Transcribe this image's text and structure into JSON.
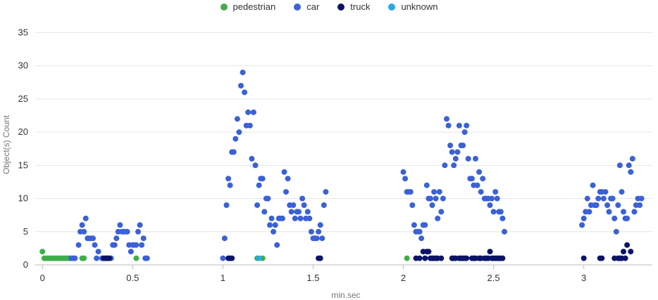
{
  "chart_data": {
    "type": "scatter",
    "title": "",
    "xlabel": "min.sec",
    "ylabel": "Object(s) Count",
    "xlim": [
      -0.04,
      3.38
    ],
    "ylim": [
      0,
      36
    ],
    "x_ticks": [
      0,
      0.5,
      1,
      1.5,
      2,
      2.5,
      3
    ],
    "x_tick_labels": [
      "0",
      "0.5",
      "1",
      "1.5",
      "2",
      "2.5",
      "3"
    ],
    "y_ticks": [
      0,
      5,
      10,
      15,
      20,
      25,
      30,
      35
    ],
    "y_tick_labels": [
      "0",
      "5",
      "10",
      "15",
      "20",
      "25",
      "30",
      "35"
    ],
    "grid": true,
    "legend_position": "top-center",
    "series": [
      {
        "name": "pedestrian",
        "color": "#3fae4a",
        "points": [
          [
            0.0,
            2
          ],
          [
            0.01,
            1
          ],
          [
            0.02,
            1
          ],
          [
            0.03,
            1
          ],
          [
            0.04,
            1
          ],
          [
            0.05,
            1
          ],
          [
            0.06,
            1
          ],
          [
            0.07,
            1
          ],
          [
            0.08,
            1
          ],
          [
            0.09,
            1
          ],
          [
            0.1,
            1
          ],
          [
            0.11,
            1
          ],
          [
            0.12,
            1
          ],
          [
            0.13,
            1
          ],
          [
            0.14,
            1
          ],
          [
            0.15,
            1
          ],
          [
            0.22,
            1
          ],
          [
            0.23,
            1
          ],
          [
            0.52,
            1
          ],
          [
            1.19,
            1
          ],
          [
            1.22,
            1
          ],
          [
            2.02,
            1
          ]
        ]
      },
      {
        "name": "car",
        "color": "#3b61d6",
        "points": [
          [
            0.16,
            1
          ],
          [
            0.17,
            1
          ],
          [
            0.18,
            1
          ],
          [
            0.2,
            3
          ],
          [
            0.21,
            5
          ],
          [
            0.22,
            6
          ],
          [
            0.23,
            5
          ],
          [
            0.24,
            7
          ],
          [
            0.25,
            4
          ],
          [
            0.26,
            4
          ],
          [
            0.27,
            4
          ],
          [
            0.28,
            4
          ],
          [
            0.29,
            3
          ],
          [
            0.3,
            1
          ],
          [
            0.31,
            2
          ],
          [
            0.33,
            1
          ],
          [
            0.36,
            1
          ],
          [
            0.38,
            1
          ],
          [
            0.39,
            3
          ],
          [
            0.4,
            3
          ],
          [
            0.41,
            4
          ],
          [
            0.42,
            5
          ],
          [
            0.43,
            6
          ],
          [
            0.44,
            5
          ],
          [
            0.45,
            5
          ],
          [
            0.46,
            5
          ],
          [
            0.47,
            5
          ],
          [
            0.48,
            3
          ],
          [
            0.49,
            2
          ],
          [
            0.5,
            3
          ],
          [
            0.51,
            3
          ],
          [
            0.52,
            3
          ],
          [
            0.53,
            5
          ],
          [
            0.54,
            6
          ],
          [
            0.55,
            3
          ],
          [
            0.56,
            4
          ],
          [
            0.57,
            1
          ],
          [
            0.58,
            1
          ],
          [
            1.0,
            1
          ],
          [
            1.01,
            4
          ],
          [
            1.02,
            9
          ],
          [
            1.03,
            13
          ],
          [
            1.04,
            12
          ],
          [
            1.05,
            17
          ],
          [
            1.06,
            17
          ],
          [
            1.07,
            19
          ],
          [
            1.08,
            22
          ],
          [
            1.09,
            20
          ],
          [
            1.1,
            27
          ],
          [
            1.11,
            29
          ],
          [
            1.12,
            26
          ],
          [
            1.13,
            21
          ],
          [
            1.14,
            23
          ],
          [
            1.15,
            21
          ],
          [
            1.16,
            16
          ],
          [
            1.17,
            23
          ],
          [
            1.18,
            15
          ],
          [
            1.19,
            9
          ],
          [
            1.2,
            12
          ],
          [
            1.21,
            13
          ],
          [
            1.22,
            13
          ],
          [
            1.23,
            8
          ],
          [
            1.24,
            10
          ],
          [
            1.25,
            10
          ],
          [
            1.26,
            6
          ],
          [
            1.27,
            7
          ],
          [
            1.28,
            5
          ],
          [
            1.29,
            6
          ],
          [
            1.3,
            3
          ],
          [
            1.31,
            7
          ],
          [
            1.32,
            7
          ],
          [
            1.33,
            7
          ],
          [
            1.34,
            14
          ],
          [
            1.35,
            11
          ],
          [
            1.36,
            13
          ],
          [
            1.37,
            9
          ],
          [
            1.38,
            8
          ],
          [
            1.39,
            9
          ],
          [
            1.4,
            7
          ],
          [
            1.41,
            8
          ],
          [
            1.42,
            8
          ],
          [
            1.43,
            7
          ],
          [
            1.44,
            10
          ],
          [
            1.45,
            9
          ],
          [
            1.46,
            7
          ],
          [
            1.47,
            8
          ],
          [
            1.48,
            7
          ],
          [
            1.49,
            5
          ],
          [
            1.5,
            4
          ],
          [
            1.51,
            4
          ],
          [
            1.52,
            4
          ],
          [
            1.53,
            5
          ],
          [
            1.54,
            6
          ],
          [
            1.55,
            4
          ],
          [
            1.56,
            9
          ],
          [
            1.57,
            11
          ],
          [
            2.0,
            14
          ],
          [
            2.01,
            13
          ],
          [
            2.02,
            11
          ],
          [
            2.03,
            11
          ],
          [
            2.04,
            11
          ],
          [
            2.05,
            9
          ],
          [
            2.06,
            6
          ],
          [
            2.07,
            5
          ],
          [
            2.08,
            5
          ],
          [
            2.09,
            5
          ],
          [
            2.1,
            4
          ],
          [
            2.11,
            6
          ],
          [
            2.12,
            6
          ],
          [
            2.13,
            12
          ],
          [
            2.14,
            10
          ],
          [
            2.15,
            10
          ],
          [
            2.16,
            9
          ],
          [
            2.17,
            11
          ],
          [
            2.18,
            10
          ],
          [
            2.19,
            7
          ],
          [
            2.2,
            11
          ],
          [
            2.21,
            8
          ],
          [
            2.22,
            10
          ],
          [
            2.23,
            15
          ],
          [
            2.24,
            22
          ],
          [
            2.25,
            21
          ],
          [
            2.26,
            18
          ],
          [
            2.27,
            17
          ],
          [
            2.28,
            15
          ],
          [
            2.29,
            16
          ],
          [
            2.3,
            17
          ],
          [
            2.31,
            21
          ],
          [
            2.32,
            18
          ],
          [
            2.33,
            18
          ],
          [
            2.34,
            20
          ],
          [
            2.35,
            21
          ],
          [
            2.36,
            16
          ],
          [
            2.37,
            13
          ],
          [
            2.38,
            13
          ],
          [
            2.39,
            12
          ],
          [
            2.4,
            16
          ],
          [
            2.41,
            12
          ],
          [
            2.42,
            14
          ],
          [
            2.43,
            11
          ],
          [
            2.44,
            13
          ],
          [
            2.45,
            10
          ],
          [
            2.46,
            10
          ],
          [
            2.47,
            10
          ],
          [
            2.48,
            9
          ],
          [
            2.49,
            10
          ],
          [
            2.5,
            8
          ],
          [
            2.51,
            11
          ],
          [
            2.52,
            10
          ],
          [
            2.53,
            8
          ],
          [
            2.54,
            8
          ],
          [
            2.55,
            7
          ],
          [
            2.56,
            5
          ],
          [
            2.99,
            6
          ],
          [
            3.0,
            7
          ],
          [
            3.01,
            8
          ],
          [
            3.02,
            10
          ],
          [
            3.03,
            8
          ],
          [
            3.04,
            9
          ],
          [
            3.05,
            12
          ],
          [
            3.06,
            9
          ],
          [
            3.07,
            9
          ],
          [
            3.08,
            10
          ],
          [
            3.09,
            11
          ],
          [
            3.1,
            11
          ],
          [
            3.11,
            10
          ],
          [
            3.12,
            11
          ],
          [
            3.13,
            9
          ],
          [
            3.14,
            8
          ],
          [
            3.15,
            10
          ],
          [
            3.16,
            10
          ],
          [
            3.17,
            7
          ],
          [
            3.18,
            5
          ],
          [
            3.19,
            9
          ],
          [
            3.2,
            15
          ],
          [
            3.21,
            11
          ],
          [
            3.22,
            8
          ],
          [
            3.23,
            7
          ],
          [
            3.24,
            7
          ],
          [
            3.25,
            15
          ],
          [
            3.26,
            14
          ],
          [
            3.27,
            16
          ],
          [
            3.28,
            8
          ],
          [
            3.29,
            9
          ],
          [
            3.3,
            10
          ],
          [
            3.31,
            9
          ],
          [
            3.32,
            10
          ]
        ]
      },
      {
        "name": "truck",
        "color": "#0b1466",
        "points": [
          [
            0.34,
            1
          ],
          [
            0.35,
            1
          ],
          [
            0.36,
            1
          ],
          [
            0.37,
            1
          ],
          [
            1.03,
            1
          ],
          [
            1.04,
            1
          ],
          [
            1.05,
            1
          ],
          [
            1.53,
            1
          ],
          [
            1.54,
            1
          ],
          [
            2.07,
            1
          ],
          [
            2.09,
            1
          ],
          [
            2.11,
            2
          ],
          [
            2.12,
            1
          ],
          [
            2.13,
            2
          ],
          [
            2.14,
            2
          ],
          [
            2.15,
            1
          ],
          [
            2.16,
            1
          ],
          [
            2.17,
            1
          ],
          [
            2.18,
            1
          ],
          [
            2.19,
            1
          ],
          [
            2.21,
            1
          ],
          [
            2.27,
            1
          ],
          [
            2.28,
            1
          ],
          [
            2.29,
            1
          ],
          [
            2.31,
            1
          ],
          [
            2.32,
            1
          ],
          [
            2.33,
            1
          ],
          [
            2.34,
            1
          ],
          [
            2.35,
            1
          ],
          [
            2.38,
            1
          ],
          [
            2.39,
            1
          ],
          [
            2.4,
            1
          ],
          [
            2.42,
            1
          ],
          [
            2.43,
            1
          ],
          [
            2.45,
            1
          ],
          [
            2.46,
            1
          ],
          [
            2.47,
            1
          ],
          [
            2.48,
            2
          ],
          [
            2.49,
            1
          ],
          [
            2.5,
            1
          ],
          [
            2.51,
            1
          ],
          [
            2.52,
            1
          ],
          [
            2.53,
            1
          ],
          [
            2.54,
            1
          ],
          [
            2.55,
            1
          ],
          [
            3.0,
            1
          ],
          [
            3.09,
            1
          ],
          [
            3.1,
            1
          ],
          [
            3.17,
            1
          ],
          [
            3.19,
            1
          ],
          [
            3.2,
            1
          ],
          [
            3.21,
            1
          ],
          [
            3.22,
            2
          ],
          [
            3.23,
            1
          ],
          [
            3.24,
            3
          ],
          [
            3.26,
            2
          ]
        ]
      },
      {
        "name": "unknown",
        "color": "#29a7f0",
        "points": [
          [
            1.2,
            1
          ]
        ]
      }
    ]
  }
}
